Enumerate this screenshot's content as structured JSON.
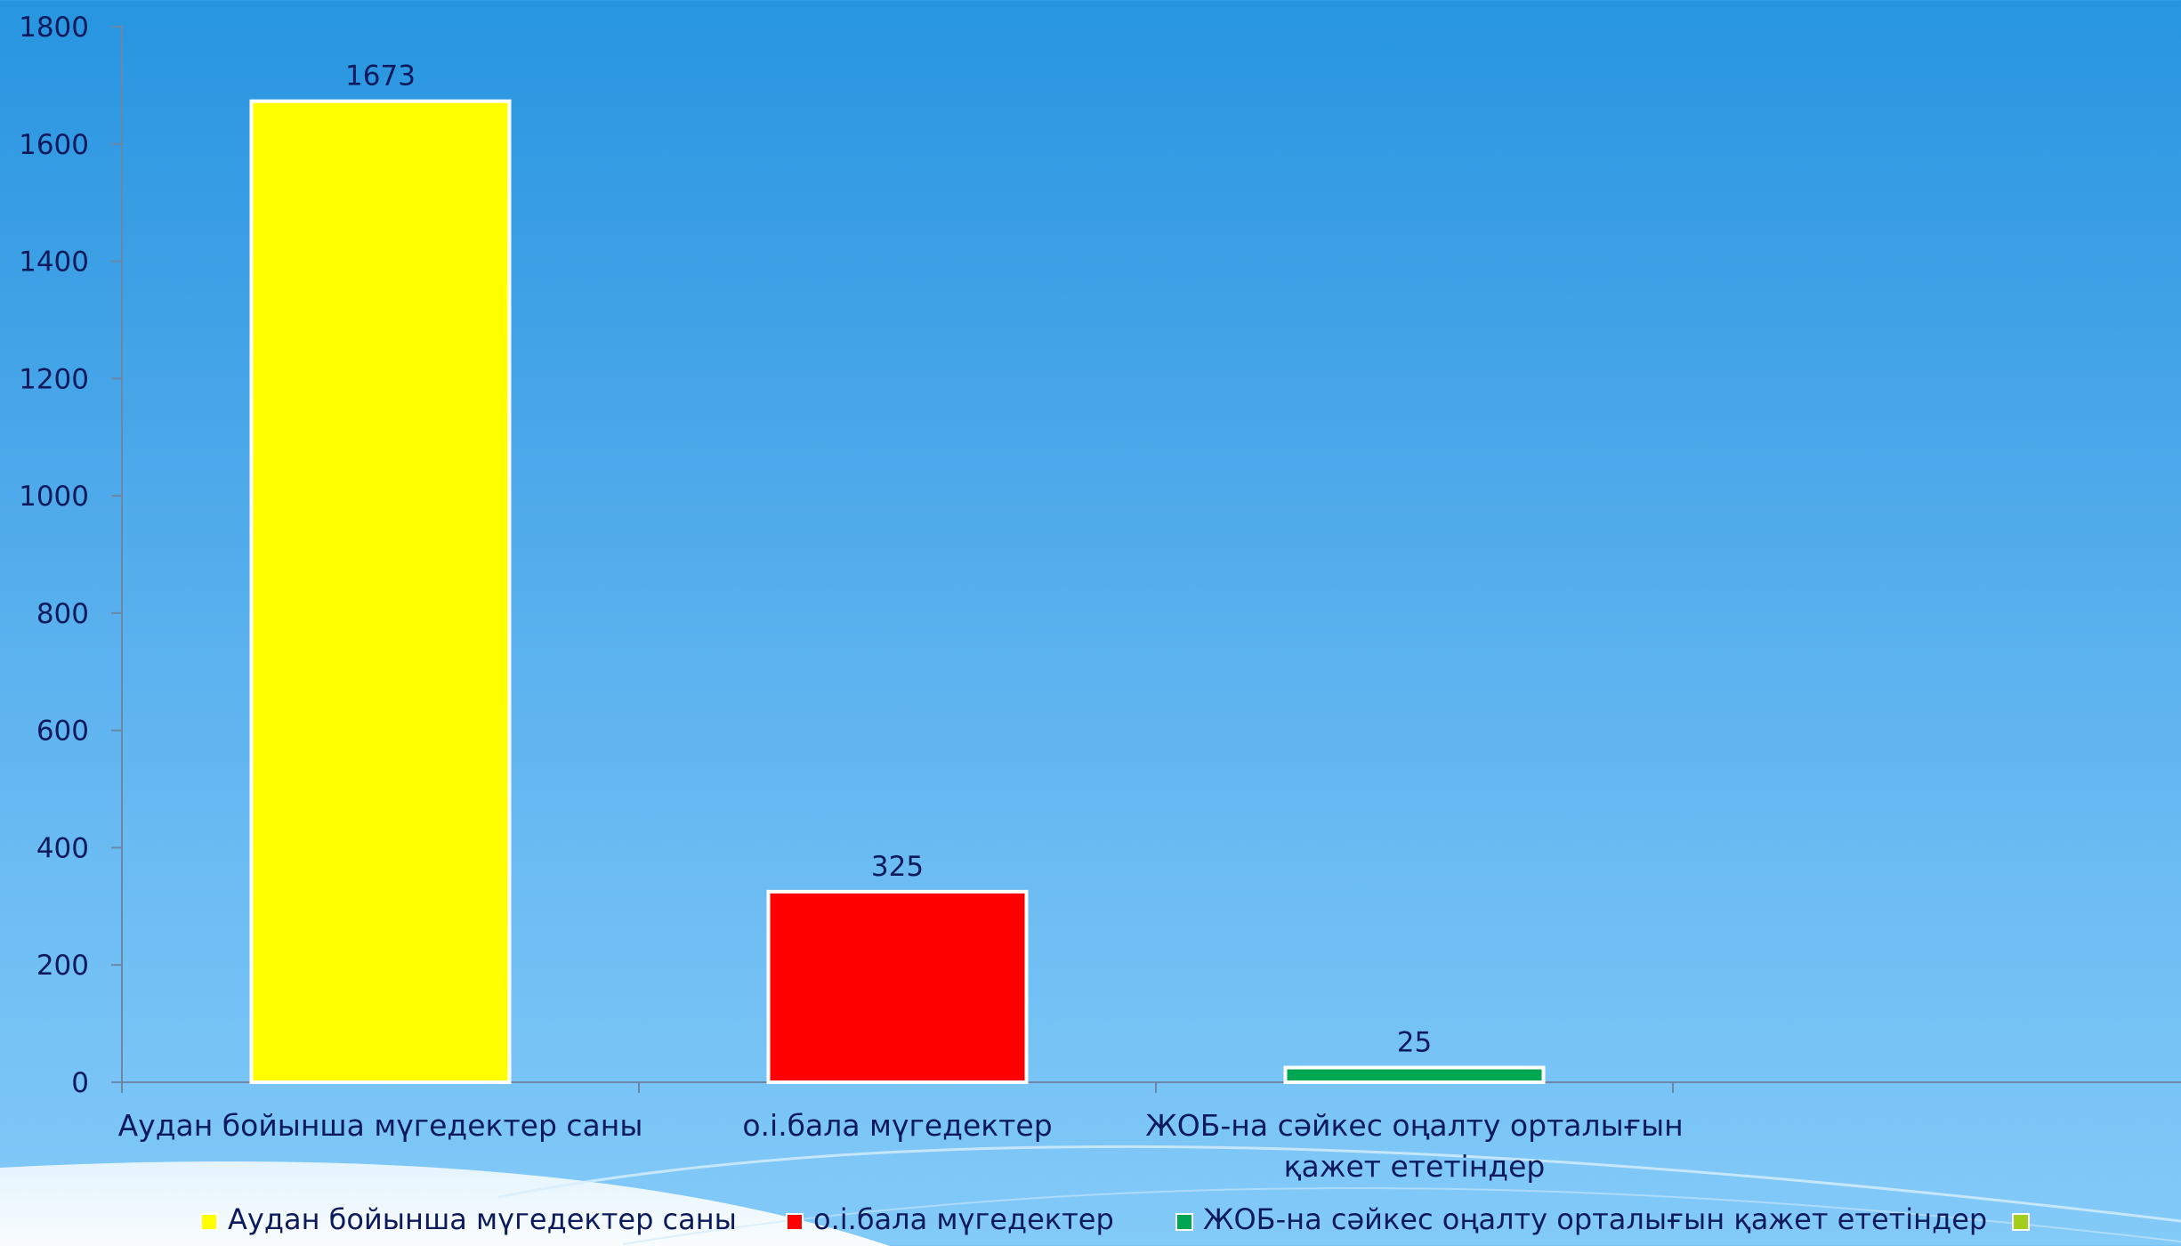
{
  "chart_data": {
    "type": "bar",
    "categories": [
      "Аудан бойынша мүгедектер саны",
      "о.і.бала мүгедектер",
      "ЖОБ-на сәйкес оңалту орталығын қажет ететіндер",
      ""
    ],
    "category_label_lines": [
      [
        "Аудан бойынша мүгедектер саны"
      ],
      [
        "о.і.бала мүгедектер"
      ],
      [
        "ЖОБ-на сәйкес оңалту орталығын",
        "қажет ететіндер"
      ],
      [
        ""
      ]
    ],
    "values": [
      1673,
      325,
      25,
      null
    ],
    "data_labels": [
      "1673",
      "325",
      "25",
      ""
    ],
    "colors": [
      "#ffff00",
      "#ff0000",
      "#00a651",
      "#a3cf1c"
    ],
    "ylim": [
      0,
      1800
    ],
    "yticks": [
      "0",
      "200",
      "400",
      "600",
      "800",
      "1000",
      "1200",
      "1400",
      "1600",
      "1800"
    ],
    "title": "",
    "xlabel": "",
    "ylabel": "",
    "grid": false,
    "legend": {
      "position": "bottom",
      "entries": [
        {
          "name": "Аудан бойынша мүгедектер саны",
          "color": "#ffff00"
        },
        {
          "name": "о.і.бала мүгедектер",
          "color": "#ff0000"
        },
        {
          "name": "ЖОБ-на сәйкес оңалту орталығын қажет ететіндер",
          "color": "#00a651"
        },
        {
          "name": "",
          "color": "#a3cf1c"
        }
      ]
    }
  }
}
